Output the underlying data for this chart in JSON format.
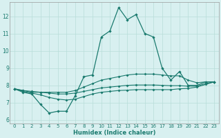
{
  "title": "",
  "xlabel": "Humidex (Indice chaleur)",
  "ylabel": "",
  "bg_color": "#d8f0f0",
  "line_color": "#1a7a6e",
  "grid_color": "#b8ddd8",
  "xlim": [
    -0.5,
    23.5
  ],
  "ylim": [
    5.8,
    12.8
  ],
  "xticks": [
    0,
    1,
    2,
    3,
    4,
    5,
    6,
    7,
    8,
    9,
    10,
    11,
    12,
    13,
    14,
    15,
    16,
    17,
    18,
    19,
    20,
    21,
    22,
    23
  ],
  "yticks": [
    6,
    7,
    8,
    9,
    10,
    11,
    12
  ],
  "curves": [
    [
      7.8,
      7.6,
      7.5,
      6.9,
      6.4,
      6.5,
      6.5,
      7.4,
      8.5,
      8.6,
      10.8,
      11.15,
      12.5,
      11.8,
      12.1,
      11.0,
      10.8,
      9.0,
      8.3,
      8.8,
      8.0,
      8.0,
      8.2,
      8.2
    ],
    [
      7.8,
      7.7,
      7.6,
      7.6,
      7.6,
      7.6,
      7.6,
      7.7,
      7.9,
      8.1,
      8.3,
      8.4,
      8.5,
      8.6,
      8.65,
      8.65,
      8.65,
      8.6,
      8.55,
      8.55,
      8.3,
      8.15,
      8.2,
      8.2
    ],
    [
      7.8,
      7.7,
      7.65,
      7.6,
      7.55,
      7.5,
      7.5,
      7.55,
      7.65,
      7.75,
      7.85,
      7.9,
      7.95,
      8.0,
      8.02,
      8.02,
      8.02,
      8.0,
      7.98,
      7.98,
      7.95,
      7.95,
      8.1,
      8.2
    ],
    [
      7.8,
      7.65,
      7.55,
      7.45,
      7.3,
      7.2,
      7.15,
      7.2,
      7.35,
      7.5,
      7.6,
      7.65,
      7.7,
      7.72,
      7.75,
      7.75,
      7.75,
      7.75,
      7.75,
      7.8,
      7.82,
      7.9,
      8.05,
      8.2
    ]
  ]
}
